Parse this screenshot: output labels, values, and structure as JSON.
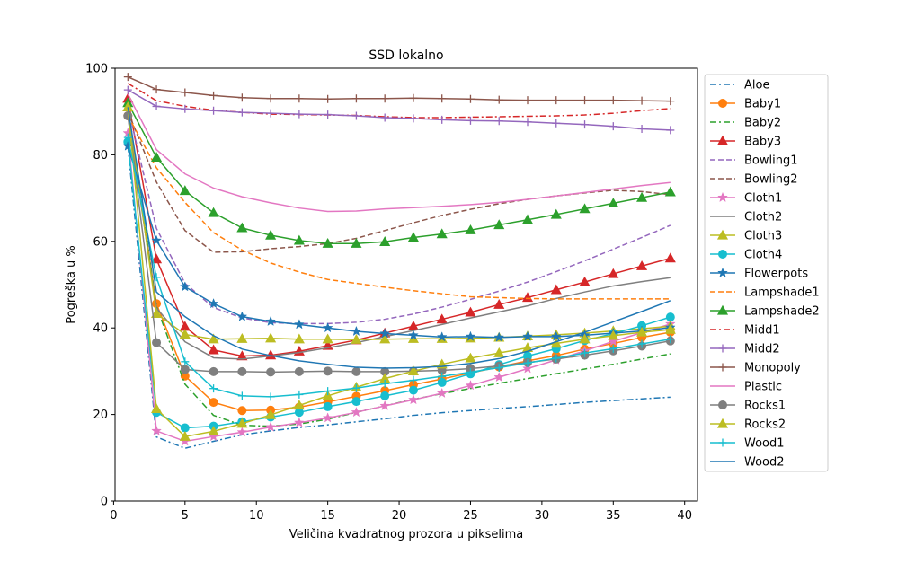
{
  "chart_data": {
    "type": "line",
    "title": "SSD lokalno",
    "xlabel": "Veličina kvadratnog prozora u pikselima",
    "ylabel": "Pogreška u %",
    "xlim": [
      0.1,
      40.9
    ],
    "ylim": [
      0,
      100
    ],
    "xticks": [
      0,
      5,
      10,
      15,
      20,
      25,
      30,
      35,
      40
    ],
    "yticks": [
      0,
      20,
      40,
      60,
      80,
      100
    ],
    "grid": false,
    "legend_position": "right",
    "x": [
      1,
      3,
      5,
      7,
      9,
      11,
      13,
      15,
      17,
      19,
      21,
      23,
      25,
      27,
      29,
      31,
      33,
      35,
      37,
      39
    ],
    "series": [
      {
        "name": "Aloe",
        "color": "#1f77b4",
        "dash": "dashdot",
        "marker": "none",
        "values": [
          82,
          14.8,
          12.2,
          13.8,
          15.3,
          16.2,
          17.0,
          17.6,
          18.3,
          19.0,
          19.8,
          20.4,
          20.9,
          21.4,
          21.8,
          22.3,
          22.8,
          23.2,
          23.6,
          24.0
        ]
      },
      {
        "name": "Baby1",
        "color": "#ff7f0e",
        "dash": "solid",
        "marker": "circle",
        "values": [
          89,
          45.6,
          28.9,
          22.8,
          20.9,
          21.0,
          21.7,
          22.9,
          24.2,
          25.5,
          26.9,
          28.2,
          29.6,
          31.0,
          32.4,
          33.6,
          35.1,
          36.4,
          37.8,
          39.0
        ]
      },
      {
        "name": "Baby2",
        "color": "#2ca02c",
        "dash": "dashdot",
        "marker": "none",
        "values": [
          91,
          45.0,
          27.0,
          19.8,
          17.5,
          17.3,
          17.8,
          18.9,
          20.5,
          22.0,
          23.5,
          24.8,
          26.0,
          27.2,
          28.3,
          29.4,
          30.5,
          31.6,
          32.8,
          34.0
        ]
      },
      {
        "name": "Baby3",
        "color": "#d62728",
        "dash": "solid",
        "marker": "triangle",
        "values": [
          93,
          55.9,
          40.3,
          34.9,
          33.5,
          33.7,
          34.6,
          35.9,
          37.2,
          38.8,
          40.4,
          42.0,
          43.6,
          45.4,
          47.0,
          48.8,
          50.6,
          52.5,
          54.3,
          56.1
        ]
      },
      {
        "name": "Bowling1",
        "color": "#9467bd",
        "dash": "dashed",
        "marker": "none",
        "values": [
          91,
          63.0,
          50.3,
          44.7,
          42.3,
          41.2,
          41.0,
          41.0,
          41.3,
          42.0,
          43.2,
          44.8,
          46.6,
          48.5,
          50.6,
          53.0,
          55.5,
          58.2,
          60.9,
          63.7
        ]
      },
      {
        "name": "Bowling2",
        "color": "#8c564b",
        "dash": "dashed",
        "marker": "none",
        "values": [
          90,
          73.7,
          62.5,
          57.5,
          57.6,
          58.3,
          58.8,
          59.5,
          60.7,
          62.5,
          64.3,
          66.0,
          67.4,
          68.7,
          69.7,
          70.5,
          71.2,
          71.8,
          71.5,
          70.8
        ]
      },
      {
        "name": "Cloth1",
        "color": "#e377c2",
        "dash": "solid",
        "marker": "star",
        "values": [
          85,
          16.2,
          13.8,
          14.9,
          15.9,
          17.1,
          18.1,
          19.2,
          20.5,
          22.0,
          23.4,
          24.9,
          26.7,
          28.6,
          30.6,
          32.6,
          34.7,
          36.9,
          38.9,
          40.9
        ]
      },
      {
        "name": "Cloth2",
        "color": "#7f7f7f",
        "dash": "solid",
        "marker": "none",
        "values": [
          89,
          44.6,
          36.8,
          33.1,
          32.8,
          33.5,
          34.3,
          35.4,
          36.6,
          38.0,
          39.4,
          40.8,
          42.3,
          43.7,
          45.1,
          46.8,
          48.3,
          49.7,
          50.7,
          51.6
        ]
      },
      {
        "name": "Cloth3",
        "color": "#bcbd22",
        "dash": "solid",
        "marker": "triangle",
        "values": [
          91,
          43.3,
          38.5,
          37.4,
          37.5,
          37.6,
          37.4,
          37.4,
          37.3,
          37.4,
          37.5,
          37.5,
          37.6,
          37.8,
          38.1,
          38.4,
          38.8,
          39.3,
          39.8,
          40.4
        ]
      },
      {
        "name": "Cloth4",
        "color": "#17becf",
        "dash": "solid",
        "marker": "circle",
        "values": [
          83,
          20.5,
          16.9,
          17.3,
          18.3,
          19.4,
          20.5,
          21.8,
          23.0,
          24.3,
          25.6,
          27.4,
          29.4,
          31.5,
          33.5,
          35.2,
          37.1,
          38.7,
          40.5,
          42.5
        ]
      },
      {
        "name": "Flowerpots",
        "color": "#1f77b4",
        "dash": "solid",
        "marker": "star",
        "values": [
          82,
          60.2,
          49.5,
          45.6,
          42.6,
          41.5,
          40.8,
          40.0,
          39.2,
          38.7,
          38.3,
          37.9,
          38.0,
          37.8,
          38.0,
          38.0,
          38.3,
          38.8,
          39.3,
          40.1
        ]
      },
      {
        "name": "Lampshade1",
        "color": "#ff7f0e",
        "dash": "dashed",
        "marker": "none",
        "values": [
          89,
          77.0,
          69.0,
          62.0,
          58.0,
          55.0,
          52.9,
          51.2,
          50.3,
          49.4,
          48.6,
          47.9,
          47.2,
          47.0,
          46.8,
          46.7,
          46.7,
          46.7,
          46.7,
          46.7
        ]
      },
      {
        "name": "Lampshade2",
        "color": "#2ca02c",
        "dash": "solid",
        "marker": "triangle",
        "values": [
          92,
          79.4,
          71.7,
          66.6,
          63.1,
          61.4,
          60.2,
          59.5,
          59.5,
          59.9,
          60.9,
          61.7,
          62.6,
          63.8,
          65.0,
          66.2,
          67.5,
          68.8,
          70.1,
          71.4
        ]
      },
      {
        "name": "Midd1",
        "color": "#d62728",
        "dash": "dashdot",
        "marker": "none",
        "values": [
          96.5,
          92.5,
          91.2,
          90.3,
          89.8,
          89.4,
          89.3,
          89.2,
          89.1,
          88.8,
          88.6,
          88.6,
          88.7,
          88.8,
          88.9,
          89.0,
          89.2,
          89.6,
          90.2,
          90.7
        ]
      },
      {
        "name": "Midd2",
        "color": "#9467bd",
        "dash": "solid",
        "marker": "plus",
        "values": [
          95,
          91.2,
          90.6,
          90.2,
          89.8,
          89.6,
          89.4,
          89.3,
          89.0,
          88.6,
          88.4,
          88.1,
          87.9,
          87.8,
          87.6,
          87.3,
          87.0,
          86.6,
          86.0,
          85.7
        ]
      },
      {
        "name": "Monopoly",
        "color": "#8c564b",
        "dash": "solid",
        "marker": "plus",
        "values": [
          98,
          95.1,
          94.4,
          93.7,
          93.2,
          93.0,
          93.0,
          92.9,
          93.0,
          93.0,
          93.1,
          93.0,
          92.9,
          92.7,
          92.6,
          92.6,
          92.6,
          92.6,
          92.5,
          92.4
        ]
      },
      {
        "name": "Plastic",
        "color": "#e377c2",
        "dash": "solid",
        "marker": "none",
        "values": [
          94,
          81.2,
          75.6,
          72.3,
          70.3,
          68.9,
          67.7,
          66.9,
          67.0,
          67.5,
          67.8,
          68.1,
          68.5,
          69.0,
          69.7,
          70.5,
          71.3,
          72.1,
          72.9,
          73.6
        ]
      },
      {
        "name": "Rocks1",
        "color": "#7f7f7f",
        "dash": "solid",
        "marker": "circle",
        "values": [
          89,
          36.6,
          30.4,
          29.9,
          29.9,
          29.8,
          29.9,
          30.0,
          29.9,
          29.9,
          30.0,
          30.2,
          30.6,
          31.2,
          32.0,
          32.8,
          33.7,
          34.7,
          35.8,
          37.0
        ]
      },
      {
        "name": "Rocks2",
        "color": "#bcbd22",
        "dash": "solid",
        "marker": "triangle",
        "values": [
          91,
          21.3,
          14.9,
          16.1,
          17.9,
          19.9,
          22.1,
          24.3,
          26.3,
          28.3,
          30.0,
          31.6,
          33.0,
          34.2,
          35.4,
          36.4,
          37.4,
          38.2,
          39.0,
          39.6
        ]
      },
      {
        "name": "Wood1",
        "color": "#17becf",
        "dash": "solid",
        "marker": "plus",
        "values": [
          84,
          51.7,
          32.2,
          26.0,
          24.3,
          24.1,
          24.6,
          25.4,
          26.1,
          27.1,
          27.9,
          28.8,
          29.8,
          30.8,
          31.9,
          33.0,
          34.2,
          35.2,
          36.3,
          37.4
        ]
      },
      {
        "name": "Wood2",
        "color": "#1f77b4",
        "dash": "solid",
        "marker": "none",
        "values": [
          91,
          48.3,
          42.6,
          38.2,
          35.1,
          33.6,
          32.4,
          31.6,
          30.9,
          30.7,
          30.8,
          31.1,
          31.8,
          32.9,
          34.6,
          36.8,
          39.0,
          41.4,
          43.8,
          46.3
        ]
      }
    ]
  }
}
